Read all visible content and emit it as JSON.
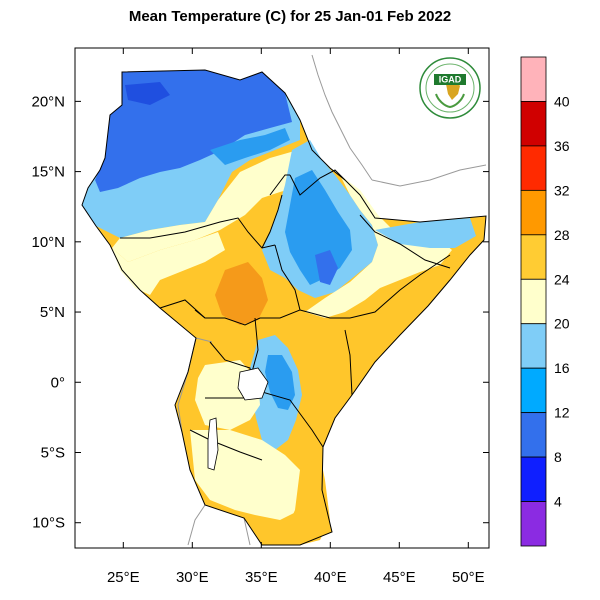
{
  "title": "Mean Temperature (C) for 25 Jan-01 Feb 2022",
  "logo": {
    "text": "IGAD"
  },
  "axes": {
    "x_ticks": [
      {
        "value": 25,
        "label": "25°E"
      },
      {
        "value": 30,
        "label": "30°E"
      },
      {
        "value": 35,
        "label": "35°E"
      },
      {
        "value": 40,
        "label": "40°E"
      },
      {
        "value": 45,
        "label": "45°E"
      },
      {
        "value": 50,
        "label": "50°E"
      }
    ],
    "y_ticks": [
      {
        "value": 20,
        "label": "20°N"
      },
      {
        "value": 15,
        "label": "15°N"
      },
      {
        "value": 10,
        "label": "10°N"
      },
      {
        "value": 5,
        "label": "5°N"
      },
      {
        "value": 0,
        "label": "0°"
      },
      {
        "value": -5,
        "label": "5°S"
      },
      {
        "value": -10,
        "label": "10°S"
      }
    ],
    "lon_range": [
      21.5,
      51.5
    ],
    "lat_range": [
      -11.8,
      23.8
    ]
  },
  "colorbar": {
    "bins": [
      {
        "color": "#ffb3ba"
      },
      {
        "color": "#d00000"
      },
      {
        "color": "#ff2a00"
      },
      {
        "color": "#ff9900"
      },
      {
        "color": "#ffcc33"
      },
      {
        "color": "#ffffcc"
      },
      {
        "color": "#7fcdf7"
      },
      {
        "color": "#00aaff"
      },
      {
        "color": "#3370ec"
      },
      {
        "color": "#0f1fff"
      },
      {
        "color": "#8b2be2"
      }
    ],
    "labels": [
      "40",
      "36",
      "32",
      "28",
      "24",
      "20",
      "16",
      "12",
      "8",
      "4"
    ]
  },
  "legend_colors": {
    "warm_orange": "#ffc62b",
    "deep_orange": "#f59a1a",
    "pale_yellow": "#ffffcc",
    "light_blue": "#7fcdf7",
    "mid_blue": "#2a9cf0",
    "dark_blue": "#3370ec"
  }
}
